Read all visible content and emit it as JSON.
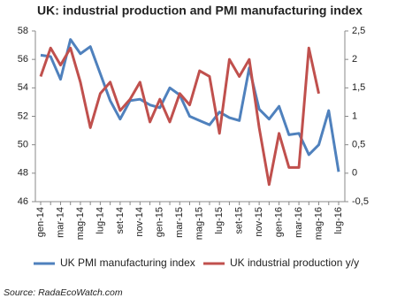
{
  "chart_data": {
    "type": "line",
    "title": "UK: industrial production and PMI manufacturing index",
    "source": "Source: RadaEcoWatch.com",
    "categories": [
      "gen-14",
      null,
      "mar-14",
      null,
      "mag-14",
      null,
      "lug-14",
      null,
      "set-14",
      null,
      "nov-14",
      null,
      "gen-15",
      null,
      "mar-15",
      null,
      "mag-15",
      null,
      "lug-15",
      null,
      "set-15",
      null,
      "nov-15",
      null,
      "gen-16",
      null,
      "mar-16",
      null,
      "mag-16",
      null,
      "lug-16"
    ],
    "series": [
      {
        "name": "UK PMI manufacturing index",
        "color": "#4f81bd",
        "values": [
          56.3,
          56.2,
          54.6,
          57.4,
          56.4,
          56.9,
          55.0,
          53.1,
          51.8,
          53.1,
          53.2,
          52.8,
          52.6,
          54.0,
          53.5,
          52.0,
          51.7,
          51.4,
          52.3,
          51.9,
          51.7,
          55.4,
          52.5,
          51.8,
          52.7,
          50.7,
          50.8,
          49.3,
          50.0,
          52.4,
          48.1
        ]
      },
      {
        "name": "UK industrial production y/y",
        "color": "#c0504d",
        "axis": "y2",
        "values": [
          1.7,
          2.2,
          1.9,
          2.2,
          1.6,
          0.8,
          1.4,
          1.6,
          1.1,
          1.3,
          1.6,
          0.9,
          1.3,
          0.9,
          1.4,
          1.2,
          1.8,
          1.7,
          0.7,
          2.0,
          1.7,
          2.0,
          0.8,
          -0.2,
          0.7,
          0.1,
          0.1,
          2.2,
          1.4,
          null,
          null
        ]
      }
    ],
    "ylim": [
      46,
      58
    ],
    "yticks": [
      46,
      48,
      50,
      52,
      54,
      56,
      58
    ],
    "y2lim": [
      -0.5,
      2.5
    ],
    "y2ticks": [
      {
        "value": -0.5,
        "label": "-0,5"
      },
      0,
      {
        "value": 0.5,
        "label": "0,5"
      },
      1,
      {
        "value": 1.5,
        "label": "1,5"
      },
      2,
      {
        "value": 2.5,
        "label": "2,5"
      }
    ],
    "legend": "bottom"
  }
}
